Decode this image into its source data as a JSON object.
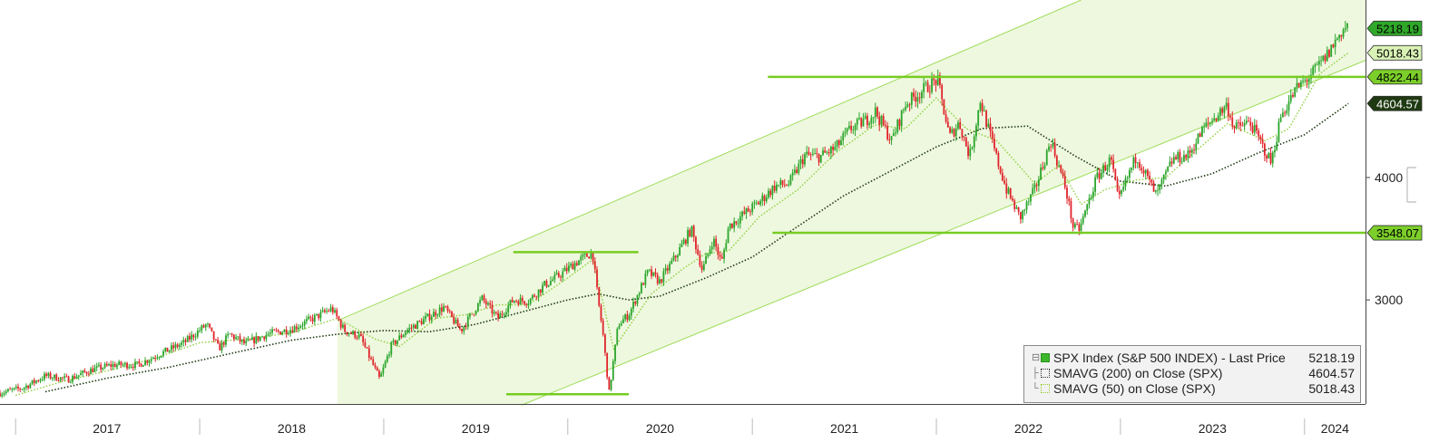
{
  "chart_data": {
    "type": "line",
    "title": "",
    "xlabel": "",
    "ylabel": "",
    "x_ticks": [
      "2017",
      "2018",
      "2019",
      "2020",
      "2021",
      "2022",
      "2023",
      "2024"
    ],
    "y_ticks": [
      3000,
      4000
    ],
    "ylim": [
      2150,
      5450
    ],
    "xlim": [
      "2016-12-01",
      "2024-05-01"
    ],
    "price_tags": [
      {
        "value": 5218.19,
        "label": "5218.19",
        "color": "#2fa82a",
        "text_color": "#000000"
      },
      {
        "value": 5018.43,
        "label": "5018.43",
        "color": "#d9f2b5",
        "text_color": "#000000"
      },
      {
        "value": 4822.44,
        "label": "4822.44",
        "color": "#7ccf2a",
        "text_color": "#000000"
      },
      {
        "value": 4604.57,
        "label": "4604.57",
        "color": "#1f3a12",
        "text_color": "#ffffff"
      },
      {
        "value": 3548.07,
        "label": "3548.07",
        "color": "#7ccf2a",
        "text_color": "#000000"
      }
    ],
    "horizontal_levels": [
      {
        "y": 4822.44,
        "x_start": "2021-02-01",
        "x_end": "2024-05-01"
      },
      {
        "y": 3548.07,
        "x_start": "2021-02-10",
        "x_end": "2024-05-01"
      },
      {
        "y": 3390,
        "x_start": "2019-09-15",
        "x_end": "2020-05-20"
      },
      {
        "y": 2230,
        "x_start": "2019-09-01",
        "x_end": "2020-05-01"
      }
    ],
    "channel": {
      "lower": [
        [
          "2019-10-01",
          2140
        ],
        [
          "2024-04-15",
          4930
        ]
      ],
      "upper": [
        [
          "2018-10-01",
          2830
        ],
        [
          "2022-10-15",
          5450
        ]
      ],
      "fill_from": "2018-10-01"
    },
    "series": [
      {
        "name": "SPX Index (S&P 500 INDEX) - Last Price",
        "last": "5218.19",
        "style": "candles",
        "x": [
          "2016-12-01",
          "2017-01-15",
          "2017-03-01",
          "2017-04-15",
          "2017-06-01",
          "2017-07-15",
          "2017-09-01",
          "2017-10-15",
          "2017-12-01",
          "2018-01-15",
          "2018-02-08",
          "2018-03-01",
          "2018-04-01",
          "2018-05-15",
          "2018-07-01",
          "2018-08-15",
          "2018-09-20",
          "2018-10-15",
          "2018-11-15",
          "2018-12-24",
          "2019-01-15",
          "2019-02-15",
          "2019-03-15",
          "2019-04-30",
          "2019-06-03",
          "2019-07-15",
          "2019-08-15",
          "2019-09-15",
          "2019-10-15",
          "2019-11-15",
          "2019-12-15",
          "2020-01-15",
          "2020-02-19",
          "2020-03-01",
          "2020-03-10",
          "2020-03-23",
          "2020-04-10",
          "2020-05-01",
          "2020-06-08",
          "2020-07-01",
          "2020-08-01",
          "2020-09-02",
          "2020-09-24",
          "2020-10-15",
          "2020-11-01",
          "2020-11-15",
          "2020-12-15",
          "2021-01-15",
          "2021-02-15",
          "2021-03-15",
          "2021-04-15",
          "2021-05-15",
          "2021-06-15",
          "2021-07-15",
          "2021-08-15",
          "2021-09-02",
          "2021-10-04",
          "2021-11-01",
          "2021-12-01",
          "2022-01-03",
          "2022-01-27",
          "2022-02-15",
          "2022-03-08",
          "2022-03-29",
          "2022-05-01",
          "2022-05-20",
          "2022-06-16",
          "2022-07-15",
          "2022-08-16",
          "2022-09-15",
          "2022-09-30",
          "2022-10-12",
          "2022-11-15",
          "2022-12-13",
          "2022-12-28",
          "2023-01-15",
          "2023-02-02",
          "2023-03-13",
          "2023-04-15",
          "2023-05-15",
          "2023-06-15",
          "2023-07-31",
          "2023-08-15",
          "2023-09-15",
          "2023-10-27",
          "2023-11-15",
          "2023-12-15",
          "2024-01-15",
          "2024-02-15",
          "2024-03-15",
          "2024-03-28"
        ],
        "y": [
          2240,
          2280,
          2380,
          2350,
          2430,
          2470,
          2470,
          2560,
          2650,
          2800,
          2600,
          2720,
          2640,
          2720,
          2760,
          2850,
          2930,
          2750,
          2700,
          2350,
          2620,
          2750,
          2820,
          2940,
          2750,
          3010,
          2850,
          3000,
          2990,
          3120,
          3200,
          3300,
          3390,
          3000,
          2750,
          2240,
          2800,
          2880,
          3230,
          3150,
          3350,
          3580,
          3240,
          3500,
          3300,
          3600,
          3700,
          3800,
          3930,
          3950,
          4180,
          4170,
          4240,
          4400,
          4470,
          4540,
          4300,
          4600,
          4700,
          4800,
          4330,
          4450,
          4170,
          4630,
          4150,
          3900,
          3670,
          3900,
          4300,
          3900,
          3580,
          3580,
          4000,
          4150,
          3800,
          4000,
          4180,
          3850,
          4150,
          4180,
          4400,
          4590,
          4400,
          4450,
          4120,
          4500,
          4720,
          4840,
          5000,
          5200,
          5250
        ]
      },
      {
        "name": "SMAVG (200)  on Close (SPX)",
        "last": "4604.57",
        "style": "dotted-dark",
        "x": [
          "2017-03-01",
          "2017-07-01",
          "2017-11-01",
          "2018-03-01",
          "2018-07-01",
          "2018-10-01",
          "2019-01-01",
          "2019-04-01",
          "2019-07-01",
          "2019-10-01",
          "2020-01-01",
          "2020-03-01",
          "2020-05-01",
          "2020-07-01",
          "2020-10-01",
          "2021-01-01",
          "2021-04-01",
          "2021-07-01",
          "2021-10-01",
          "2022-01-01",
          "2022-04-01",
          "2022-07-01",
          "2022-10-01",
          "2023-01-01",
          "2023-04-01",
          "2023-07-01",
          "2023-10-01",
          "2024-01-01",
          "2024-03-28"
        ],
        "y": [
          2250,
          2360,
          2450,
          2560,
          2670,
          2720,
          2750,
          2740,
          2800,
          2900,
          3000,
          3050,
          3000,
          3030,
          3180,
          3350,
          3600,
          3850,
          4050,
          4250,
          4400,
          4420,
          4180,
          3970,
          3930,
          4030,
          4200,
          4350,
          4604.57
        ]
      },
      {
        "name": "SMAVG (50)  on Close (SPX)",
        "last": "5018.43",
        "style": "dotted-light",
        "x": [
          "2017-01-01",
          "2017-04-01",
          "2017-07-01",
          "2017-10-01",
          "2018-01-01",
          "2018-04-01",
          "2018-07-01",
          "2018-10-01",
          "2018-12-15",
          "2019-02-01",
          "2019-04-15",
          "2019-06-15",
          "2019-08-15",
          "2019-10-15",
          "2020-01-01",
          "2020-02-20",
          "2020-04-01",
          "2020-05-01",
          "2020-06-15",
          "2020-08-15",
          "2020-10-01",
          "2020-11-15",
          "2021-01-15",
          "2021-04-01",
          "2021-06-15",
          "2021-09-01",
          "2021-11-01",
          "2022-01-01",
          "2022-03-01",
          "2022-05-01",
          "2022-07-15",
          "2022-09-01",
          "2022-10-15",
          "2022-12-01",
          "2023-02-01",
          "2023-04-01",
          "2023-06-01",
          "2023-08-01",
          "2023-10-15",
          "2023-12-01",
          "2024-02-01",
          "2024-03-28"
        ],
        "y": [
          2220,
          2330,
          2420,
          2520,
          2650,
          2680,
          2730,
          2850,
          2680,
          2620,
          2850,
          2880,
          2960,
          2960,
          3180,
          3330,
          2600,
          2780,
          3050,
          3250,
          3380,
          3400,
          3680,
          3900,
          4200,
          4430,
          4400,
          4650,
          4400,
          4300,
          3950,
          4100,
          3780,
          3900,
          3980,
          4000,
          4220,
          4440,
          4300,
          4400,
          4850,
          5018.43
        ]
      }
    ],
    "legend": {
      "position": "bottom-right"
    }
  }
}
